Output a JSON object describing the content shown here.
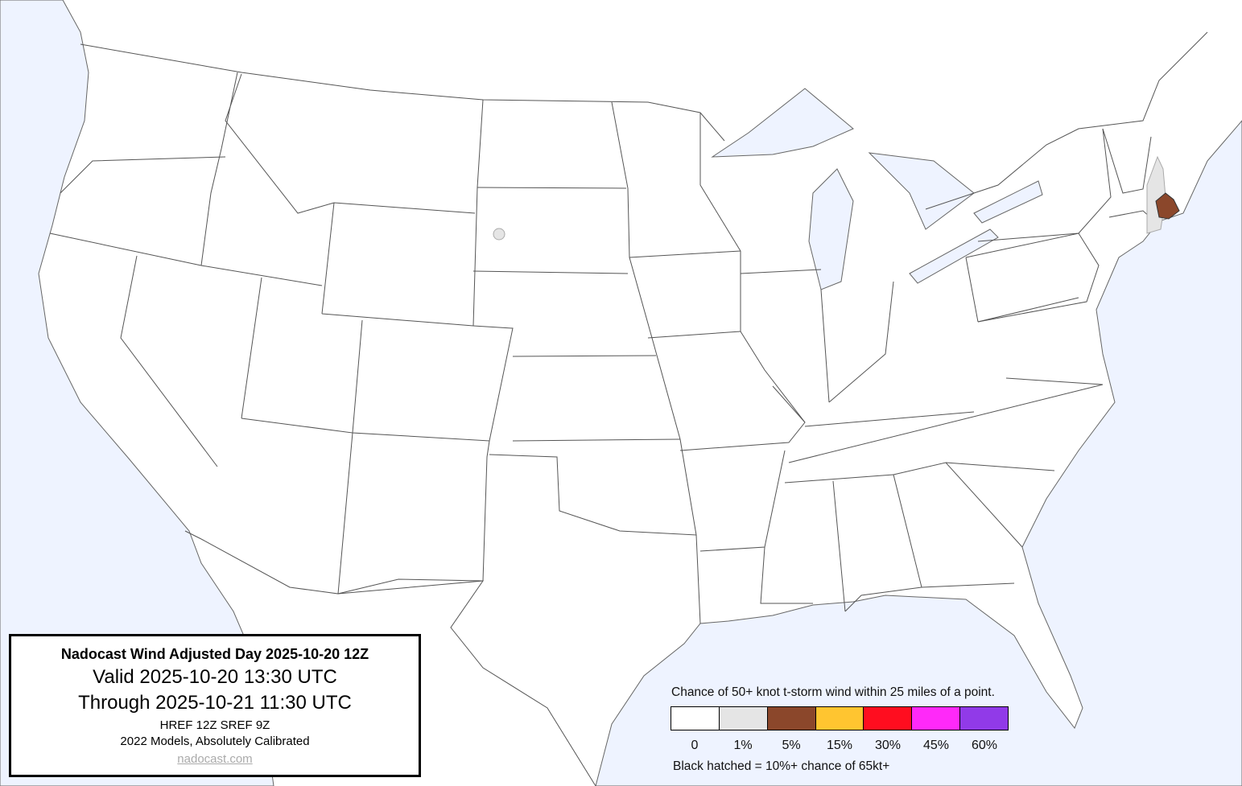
{
  "colors": {
    "water": "#eef3ff",
    "land": "#ffffff",
    "border": "#555555"
  },
  "title_box": {
    "title": "Nadocast Wind Adjusted Day 2025-10-20 12Z",
    "valid": "Valid 2025-10-20 13:30 UTC",
    "through": "Through 2025-10-21 11:30 UTC",
    "models": "HREF 12Z SREF 9Z",
    "calibration": "2022 Models, Absolutely Calibrated",
    "link": "nadocast.com"
  },
  "legend": {
    "title": "Chance of 50+ knot t-storm wind within 25 miles of a point.",
    "bins": [
      {
        "label": "0",
        "color": "#ffffff"
      },
      {
        "label": "1%",
        "color": "#e5e5e5"
      },
      {
        "label": "5%",
        "color": "#8b472b"
      },
      {
        "label": "15%",
        "color": "#ffc530"
      },
      {
        "label": "30%",
        "color": "#ff0d1f"
      },
      {
        "label": "45%",
        "color": "#ff29f9"
      },
      {
        "label": "60%",
        "color": "#913ae8"
      }
    ],
    "note": "Black hatched = 10%+ chance of 65kt+"
  }
}
